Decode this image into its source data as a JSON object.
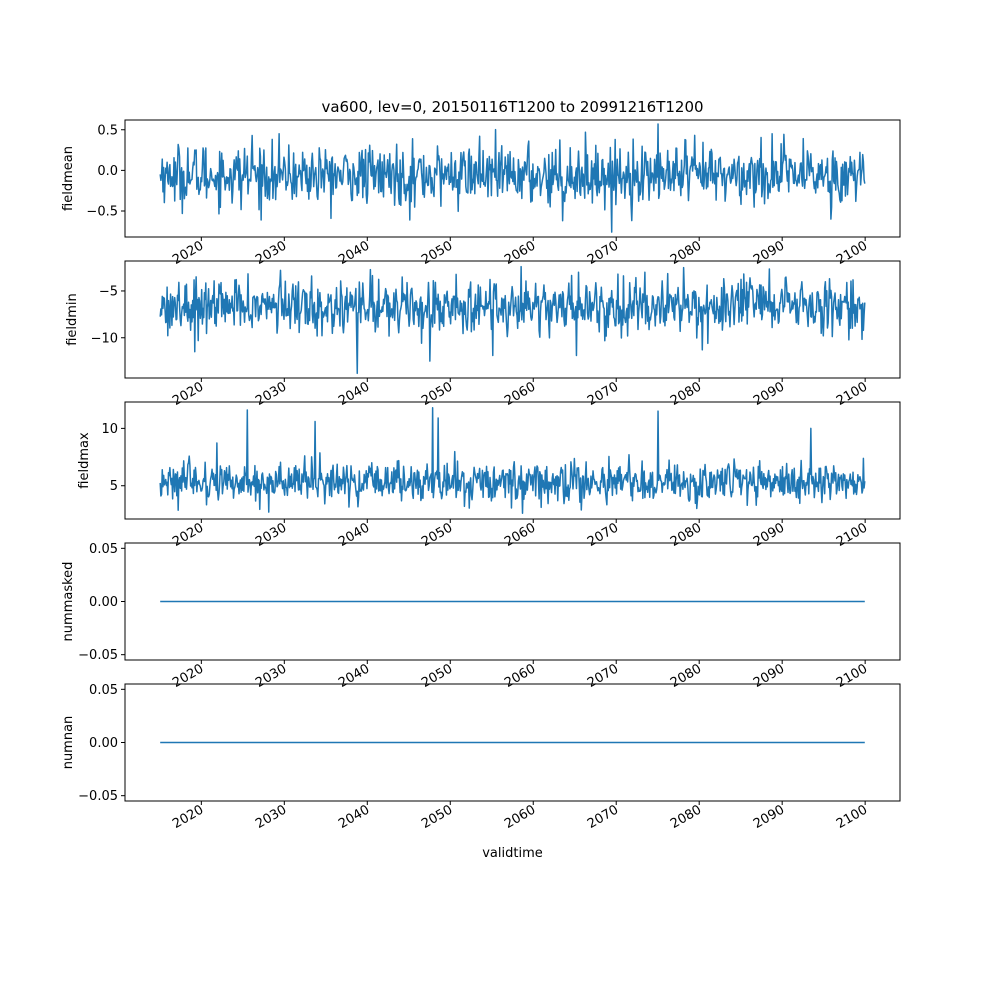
{
  "figure": {
    "title": "va600, lev=0, 20150116T1200 to 20991216T1200",
    "line_color": "#1f77b4"
  },
  "chart_data": [
    {
      "type": "line",
      "ylabel": "fieldmean",
      "xlabel": "",
      "x_range": [
        "2015-01-16",
        "2099-12-16"
      ],
      "xlim": [
        2010.8,
        2104.2
      ],
      "ylim": [
        -0.82,
        0.62
      ],
      "y_ticks": [
        {
          "v": 0.5,
          "label": "0.5"
        },
        {
          "v": 0.0,
          "label": "0.0"
        },
        {
          "v": -0.5,
          "label": "−0.5"
        }
      ],
      "x_ticks": [
        "2020",
        "2030",
        "2040",
        "2050",
        "2060",
        "2070",
        "2080",
        "2090",
        "2100"
      ],
      "x_tick_values": [
        2020,
        2030,
        2040,
        2050,
        2060,
        2070,
        2080,
        2090,
        2100
      ],
      "values_summary": {
        "baseline": -0.06,
        "amplitude": 0.2,
        "min": -0.76,
        "max": 0.57
      },
      "extremes": [
        {
          "x": "2075-01",
          "y": 0.57
        },
        {
          "x": "2069-06",
          "y": -0.76
        },
        {
          "x": "2063-07",
          "y": -0.62
        },
        {
          "x": "2045-02",
          "y": -0.61
        },
        {
          "x": "2088-10",
          "y": 0.45
        },
        {
          "x": "2095-11",
          "y": -0.6
        },
        {
          "x": "2053-07",
          "y": 0.42
        },
        {
          "x": "2026-02",
          "y": 0.43
        }
      ]
    },
    {
      "type": "line",
      "ylabel": "fieldmin",
      "xlabel": "",
      "x_range": [
        "2015-01-16",
        "2099-12-16"
      ],
      "xlim": [
        2010.8,
        2104.2
      ],
      "ylim": [
        -14.3,
        -1.8
      ],
      "y_ticks": [
        {
          "v": -5,
          "label": "−5"
        },
        {
          "v": -10,
          "label": "−10"
        }
      ],
      "x_ticks": [
        "2020",
        "2030",
        "2040",
        "2050",
        "2060",
        "2070",
        "2080",
        "2090",
        "2100"
      ],
      "x_tick_values": [
        2020,
        2030,
        2040,
        2050,
        2060,
        2070,
        2080,
        2090,
        2100
      ],
      "values_summary": {
        "baseline": -6.6,
        "amplitude": 1.6,
        "min": -13.8,
        "max": -2.4
      },
      "extremes": [
        {
          "x": "2038-10",
          "y": -13.8
        },
        {
          "x": "2058-07",
          "y": -2.4
        },
        {
          "x": "2047-07",
          "y": -12.5
        },
        {
          "x": "2055-02",
          "y": -11.9
        },
        {
          "x": "2065-03",
          "y": -11.9
        },
        {
          "x": "2080-05",
          "y": -11.3
        },
        {
          "x": "2019-03",
          "y": -11.5
        },
        {
          "x": "2065-06",
          "y": -3.0
        }
      ]
    },
    {
      "type": "line",
      "ylabel": "fieldmax",
      "xlabel": "",
      "x_range": [
        "2015-01-16",
        "2099-12-16"
      ],
      "xlim": [
        2010.8,
        2104.2
      ],
      "ylim": [
        2.1,
        12.3
      ],
      "y_ticks": [
        {
          "v": 10,
          "label": "10"
        },
        {
          "v": 5,
          "label": "5"
        }
      ],
      "x_ticks": [
        "2020",
        "2030",
        "2040",
        "2050",
        "2060",
        "2070",
        "2080",
        "2090",
        "2100"
      ],
      "x_tick_values": [
        2020,
        2030,
        2040,
        2050,
        2060,
        2070,
        2080,
        2090,
        2100
      ],
      "values_summary": {
        "baseline": 5.3,
        "amplitude": 1.0,
        "min": 2.6,
        "max": 11.8
      },
      "extremes": [
        {
          "x": "2025-07",
          "y": 11.6
        },
        {
          "x": "2047-11",
          "y": 11.8
        },
        {
          "x": "2075-01",
          "y": 11.5
        },
        {
          "x": "2048-07",
          "y": 10.9
        },
        {
          "x": "2033-09",
          "y": 10.6
        },
        {
          "x": "2058-09",
          "y": 2.6
        },
        {
          "x": "2028-02",
          "y": 2.7
        },
        {
          "x": "2093-06",
          "y": 10.0
        }
      ]
    },
    {
      "type": "line",
      "ylabel": "nummasked",
      "xlabel": "",
      "x_range": [
        "2015-01-16",
        "2099-12-16"
      ],
      "xlim": [
        2010.8,
        2104.2
      ],
      "ylim": [
        -0.055,
        0.055
      ],
      "y_ticks": [
        {
          "v": 0.05,
          "label": "0.05"
        },
        {
          "v": 0.0,
          "label": "0.00"
        },
        {
          "v": -0.05,
          "label": "−0.05"
        }
      ],
      "x_ticks": [
        "2020",
        "2030",
        "2040",
        "2050",
        "2060",
        "2070",
        "2080",
        "2090",
        "2100"
      ],
      "x_tick_values": [
        2020,
        2030,
        2040,
        2050,
        2060,
        2070,
        2080,
        2090,
        2100
      ],
      "constant_value": 0.0
    },
    {
      "type": "line",
      "ylabel": "numnan",
      "xlabel": "validtime",
      "x_range": [
        "2015-01-16",
        "2099-12-16"
      ],
      "xlim": [
        2010.8,
        2104.2
      ],
      "ylim": [
        -0.055,
        0.055
      ],
      "y_ticks": [
        {
          "v": 0.05,
          "label": "0.05"
        },
        {
          "v": 0.0,
          "label": "0.00"
        },
        {
          "v": -0.05,
          "label": "−0.05"
        }
      ],
      "x_ticks": [
        "2020",
        "2030",
        "2040",
        "2050",
        "2060",
        "2070",
        "2080",
        "2090",
        "2100"
      ],
      "x_tick_values": [
        2020,
        2030,
        2040,
        2050,
        2060,
        2070,
        2080,
        2090,
        2100
      ],
      "constant_value": 0.0
    }
  ]
}
